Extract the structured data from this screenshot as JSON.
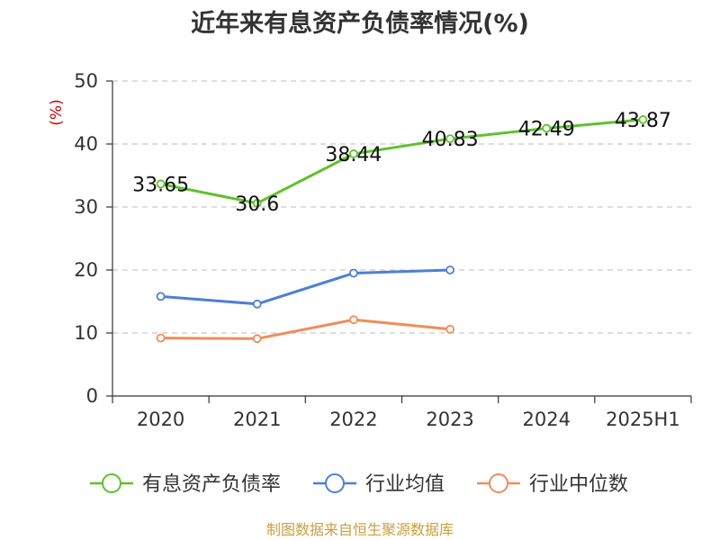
{
  "chart_data": {
    "type": "line",
    "title": "近年来有息资产负债率情况(%)",
    "unit_label": "(%)",
    "categories": [
      "2020",
      "2021",
      "2022",
      "2023",
      "2024",
      "2025H1"
    ],
    "ylim": [
      0,
      50
    ],
    "yticks": [
      "0",
      "10",
      "20",
      "30",
      "40",
      "50"
    ],
    "grid": true,
    "legend_position": "bottom",
    "series": [
      {
        "name": "有息资产负债率",
        "color": "#5ec12c",
        "values": [
          33.65,
          30.6,
          38.44,
          40.83,
          42.49,
          43.87
        ],
        "labels": [
          "33.65",
          "30.6",
          "38.44",
          "40.83",
          "42.49",
          "43.87"
        ]
      },
      {
        "name": "行业均值",
        "color": "#4d7fd6",
        "values": [
          15.8,
          14.6,
          19.5,
          20.0,
          null,
          null
        ]
      },
      {
        "name": "行业中位数",
        "color": "#f08c5a",
        "values": [
          9.2,
          9.1,
          12.1,
          10.6,
          null,
          null
        ]
      }
    ]
  },
  "source": "制图数据来自恒生聚源数据库"
}
